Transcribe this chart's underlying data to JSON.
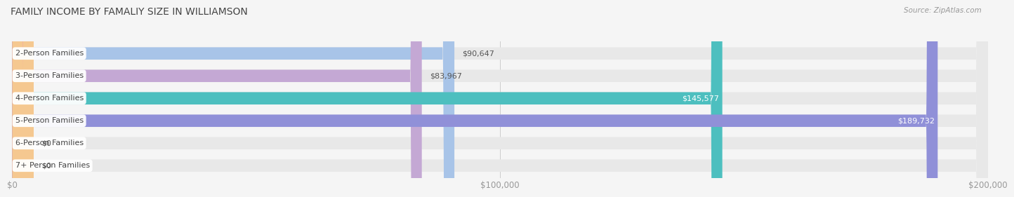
{
  "title": "FAMILY INCOME BY FAMALIY SIZE IN WILLIAMSON",
  "source": "Source: ZipAtlas.com",
  "categories": [
    "2-Person Families",
    "3-Person Families",
    "4-Person Families",
    "5-Person Families",
    "6-Person Families",
    "7+ Person Families"
  ],
  "values": [
    90647,
    83967,
    145577,
    189732,
    0,
    0
  ],
  "labels": [
    "$90,647",
    "$83,967",
    "$145,577",
    "$189,732",
    "$0",
    "$0"
  ],
  "bar_colors": [
    "#a8c4e8",
    "#c4a8d4",
    "#4dbfbf",
    "#9090d8",
    "#f898ac",
    "#f5c890"
  ],
  "label_colors": [
    "#555555",
    "#555555",
    "#ffffff",
    "#ffffff",
    "#555555",
    "#555555"
  ],
  "background_color": "#f5f5f5",
  "bar_bg_color": "#e8e8e8",
  "xlim": [
    0,
    200000
  ],
  "xticks": [
    0,
    100000,
    200000
  ],
  "xtick_labels": [
    "$0",
    "$100,000",
    "$200,000"
  ],
  "bar_height": 0.55,
  "title_fontsize": 10,
  "label_fontsize": 8,
  "tick_fontsize": 8.5,
  "category_fontsize": 8
}
